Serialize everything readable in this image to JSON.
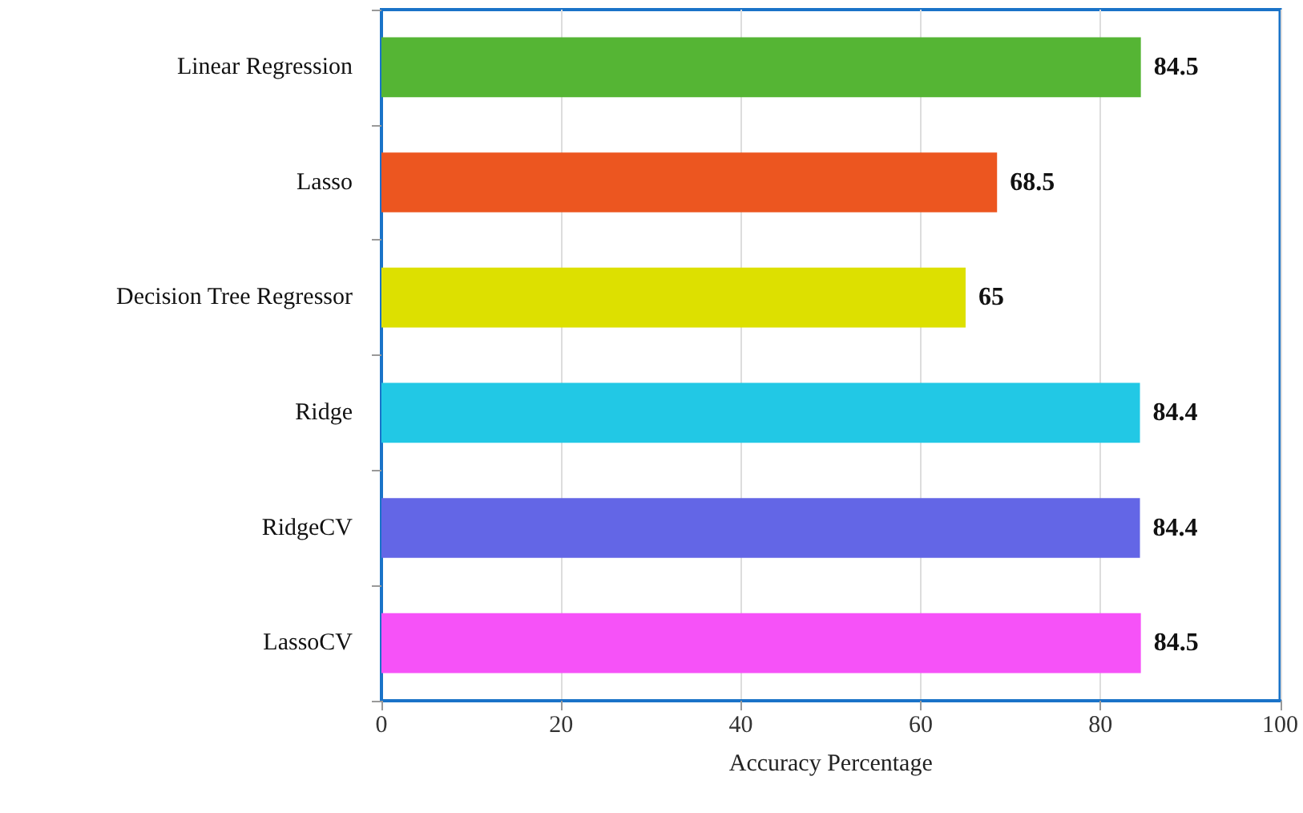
{
  "chart_data": {
    "type": "bar",
    "orientation": "horizontal",
    "xlabel": "Accuracy Percentage",
    "categories": [
      "Linear Regression",
      "Lasso",
      "Decision Tree Regressor",
      "Ridge",
      "RidgeCV",
      "LassoCV"
    ],
    "values": [
      84.5,
      68.5,
      65,
      84.4,
      84.4,
      84.5
    ],
    "colors": [
      "#55b534",
      "#ec5620",
      "#dde000",
      "#22c8e5",
      "#6366e6",
      "#f652f8"
    ],
    "xlim": [
      0,
      100
    ],
    "xticks": [
      0,
      20,
      40,
      60,
      80,
      100
    ],
    "grid": "x",
    "data_labels": true
  }
}
